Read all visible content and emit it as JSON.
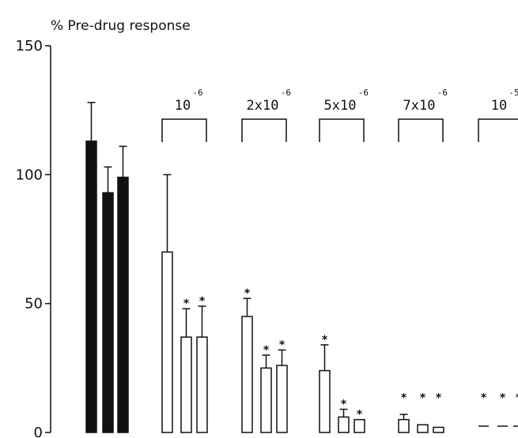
{
  "chart_data": {
    "type": "bar",
    "ylabel": "% Pre-drug response",
    "ylim": [
      0,
      150
    ],
    "yticks": [
      0,
      50,
      100,
      150
    ],
    "control": {
      "values": [
        113,
        93,
        99
      ],
      "errors": [
        15,
        10,
        12
      ]
    },
    "groups": [
      {
        "base": "10",
        "exp": "-6",
        "values": [
          70,
          37,
          37
        ],
        "errors": [
          30,
          11,
          12
        ],
        "stars": [
          "",
          "*",
          "*"
        ]
      },
      {
        "base": "2x10",
        "exp": "-6",
        "values": [
          45,
          25,
          26
        ],
        "errors": [
          7,
          5,
          6
        ],
        "stars": [
          "*",
          "*",
          "*"
        ]
      },
      {
        "base": "5x10",
        "exp": "-6",
        "values": [
          24,
          6,
          5
        ],
        "errors": [
          10,
          3,
          0
        ],
        "stars": [
          "*",
          "*",
          "*"
        ]
      },
      {
        "base": "7x10",
        "exp": "-6",
        "values": [
          5,
          3,
          2
        ],
        "errors": [
          2,
          0,
          0
        ],
        "stars": [
          "*",
          "*",
          "*"
        ]
      },
      {
        "base": "10",
        "exp": "-5",
        "values": [
          0,
          0,
          0
        ],
        "errors": [
          0,
          0,
          0
        ],
        "stars": [
          "*",
          "*",
          "*"
        ]
      }
    ],
    "grid": false
  }
}
